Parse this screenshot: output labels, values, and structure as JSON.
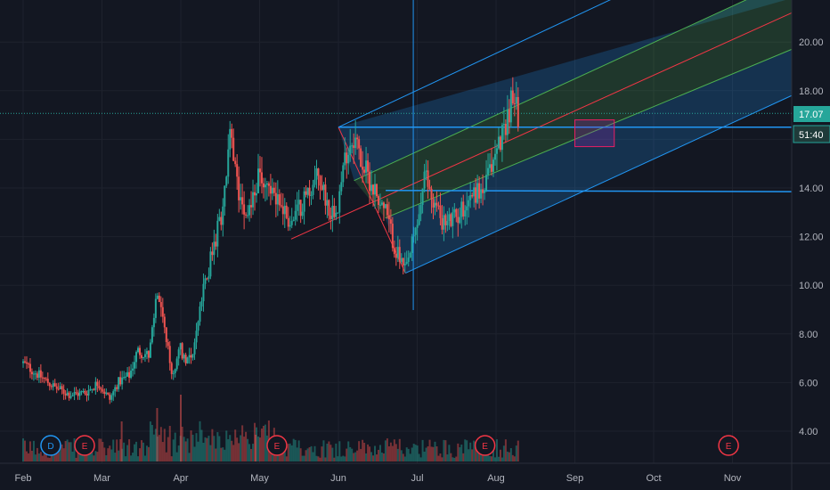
{
  "chart_data": {
    "type": "candlestick",
    "x_axis": {
      "labels": [
        "Feb",
        "Mar",
        "Apr",
        "May",
        "Jun",
        "Jul",
        "Aug",
        "Sep",
        "Oct",
        "Nov"
      ]
    },
    "y_axis": {
      "labels": [
        "4.00",
        "6.00",
        "8.00",
        "10.00",
        "12.00",
        "14.00",
        "16.00",
        "18.00",
        "20.00"
      ],
      "range": [
        3.0,
        22.0
      ]
    },
    "price": {
      "last": "17.07",
      "countdown": "51:40"
    },
    "events": [
      {
        "label": "D",
        "month": "Feb",
        "color": "#2196f3"
      },
      {
        "label": "E",
        "month": "Mar",
        "color": "#f23645"
      },
      {
        "label": "E",
        "month": "May",
        "color": "#f23645"
      },
      {
        "label": "E",
        "month": "Aug",
        "color": "#f23645"
      },
      {
        "label": "E",
        "month": "Oct",
        "color": "#f23645"
      }
    ],
    "keypoints": [
      {
        "m": 0.0,
        "p": 6.8
      },
      {
        "m": 0.2,
        "p": 6.3
      },
      {
        "m": 0.4,
        "p": 5.8
      },
      {
        "m": 0.6,
        "p": 5.5
      },
      {
        "m": 0.8,
        "p": 5.6
      },
      {
        "m": 0.95,
        "p": 6.0
      },
      {
        "m": 1.1,
        "p": 5.3
      },
      {
        "m": 1.2,
        "p": 6.0
      },
      {
        "m": 1.35,
        "p": 6.3
      },
      {
        "m": 1.45,
        "p": 7.3
      },
      {
        "m": 1.6,
        "p": 7.1
      },
      {
        "m": 1.7,
        "p": 9.8
      },
      {
        "m": 1.8,
        "p": 8.0
      },
      {
        "m": 1.9,
        "p": 6.1
      },
      {
        "m": 1.97,
        "p": 7.6
      },
      {
        "m": 2.05,
        "p": 7.0
      },
      {
        "m": 2.15,
        "p": 7.2
      },
      {
        "m": 2.3,
        "p": 10.0
      },
      {
        "m": 2.45,
        "p": 12.0
      },
      {
        "m": 2.55,
        "p": 13.5
      },
      {
        "m": 2.62,
        "p": 16.2
      },
      {
        "m": 2.72,
        "p": 14.0
      },
      {
        "m": 2.85,
        "p": 13.0
      },
      {
        "m": 3.0,
        "p": 14.5
      },
      {
        "m": 3.2,
        "p": 13.8
      },
      {
        "m": 3.4,
        "p": 12.5
      },
      {
        "m": 3.55,
        "p": 13.5
      },
      {
        "m": 3.75,
        "p": 14.5
      },
      {
        "m": 3.9,
        "p": 13.0
      },
      {
        "m": 4.0,
        "p": 13.5
      },
      {
        "m": 4.1,
        "p": 15.5
      },
      {
        "m": 4.2,
        "p": 16.2
      },
      {
        "m": 4.3,
        "p": 15.0
      },
      {
        "m": 4.45,
        "p": 14.0
      },
      {
        "m": 4.6,
        "p": 13.0
      },
      {
        "m": 4.72,
        "p": 11.5
      },
      {
        "m": 4.85,
        "p": 10.5
      },
      {
        "m": 5.0,
        "p": 12.5
      },
      {
        "m": 5.1,
        "p": 14.5
      },
      {
        "m": 5.2,
        "p": 13.5
      },
      {
        "m": 5.35,
        "p": 12.5
      },
      {
        "m": 5.5,
        "p": 12.8
      },
      {
        "m": 5.7,
        "p": 13.8
      },
      {
        "m": 5.85,
        "p": 13.9
      },
      {
        "m": 6.0,
        "p": 15.5
      },
      {
        "m": 6.1,
        "p": 16.5
      },
      {
        "m": 6.2,
        "p": 17.6
      },
      {
        "m": 6.28,
        "p": 17.1
      }
    ],
    "drawings": {
      "pitchfork": {
        "pivot": {
          "m": 4.0,
          "p": 16.5
        },
        "low": {
          "m": 4.85,
          "p": 10.5
        },
        "base": {
          "m": 3.4,
          "p": 11.9
        }
      },
      "horizontal_lines": [
        {
          "p": 17.07,
          "style": "dotted"
        },
        {
          "p": 16.5
        },
        {
          "p": 13.9
        }
      ],
      "rectangle": {
        "m1": 7.0,
        "m2": 7.5,
        "p1": 15.7,
        "p2": 16.8
      },
      "vertical_line": {
        "m": 4.95
      }
    }
  }
}
